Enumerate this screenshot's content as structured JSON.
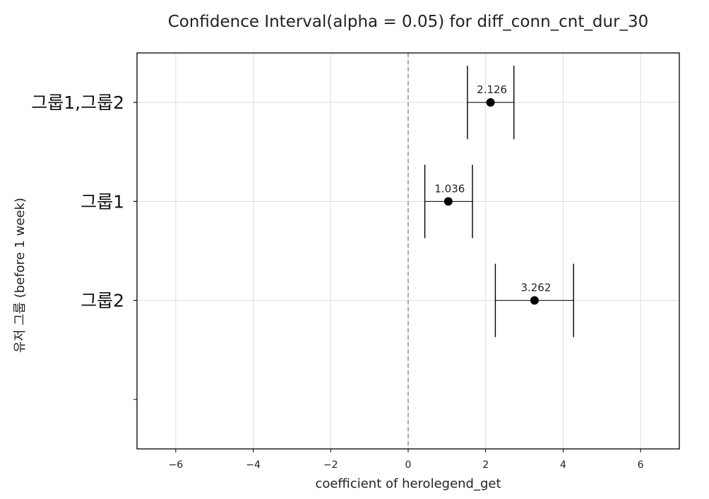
{
  "chart_data": {
    "type": "scatter",
    "title": "Confidence Interval(alpha = 0.05) for diff_conn_cnt_dur_30",
    "xlabel": "coefficient of herolegend_get",
    "ylabel": "유저 그룹 (before 1 week)",
    "xlim": [
      -7,
      7
    ],
    "xticks": [
      -6,
      -4,
      -2,
      0,
      2,
      4,
      6
    ],
    "xtick_labels": [
      "−6",
      "−4",
      "−2",
      "0",
      "2",
      "4",
      "6"
    ],
    "ylim": [
      -0.5,
      3.5
    ],
    "categories": [
      "그룹2",
      "그룹1",
      "그룹1,그룹2"
    ],
    "estimates": [
      3.262,
      1.036,
      2.126
    ],
    "point_labels": [
      "3.262",
      "1.036",
      "2.126"
    ],
    "ci_lower": [
      2.25,
      0.43,
      1.53
    ],
    "ci_upper": [
      4.27,
      1.66,
      2.73
    ],
    "reference_line_x": 0,
    "grid": true,
    "colors": {
      "point": "#000000",
      "ci": "#000000",
      "grid": "#dddddd",
      "reference": "#888888"
    }
  }
}
